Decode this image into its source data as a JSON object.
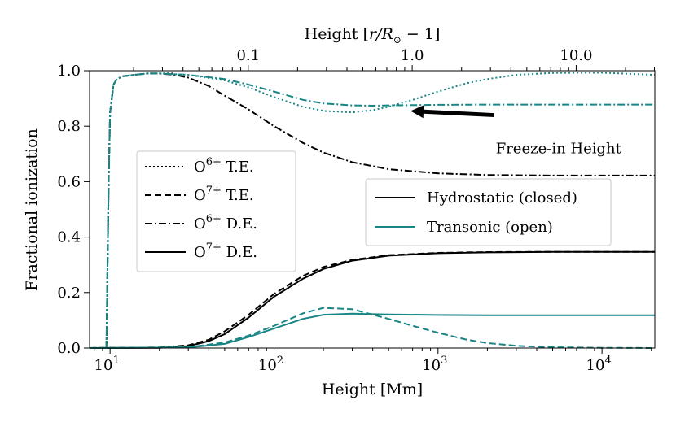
{
  "chart_data": {
    "type": "line",
    "xlabel": "Height [Mm]",
    "ylabel": "Fractional ionization",
    "x2label_prefix": "Height [",
    "x2label_var": "r/R",
    "x2label_sub": "⊙",
    "x2label_suffix": " − 1]",
    "xscale": "log",
    "xlim": [
      7.5,
      21000
    ],
    "ylim": [
      0.0,
      1.0
    ],
    "x_ticks": [
      {
        "value": 10,
        "label": "10",
        "exp": "1"
      },
      {
        "value": 100,
        "label": "10",
        "exp": "2"
      },
      {
        "value": 1000,
        "label": "10",
        "exp": "3"
      },
      {
        "value": 10000,
        "label": "10",
        "exp": "4"
      }
    ],
    "y_ticks": [
      {
        "value": 0.0,
        "label": "0.0"
      },
      {
        "value": 0.2,
        "label": "0.2"
      },
      {
        "value": 0.4,
        "label": "0.4"
      },
      {
        "value": 0.6,
        "label": "0.6"
      },
      {
        "value": 0.8,
        "label": "0.8"
      },
      {
        "value": 1.0,
        "label": "1.0"
      }
    ],
    "x2_ticks": [
      {
        "value": 0.1,
        "label": "0.1"
      },
      {
        "value": 1.0,
        "label": "1.0"
      },
      {
        "value": 10.0,
        "label": "10.0"
      }
    ],
    "x2_scale_Mm_per_unit": 696,
    "annotation": {
      "text": "Freeze-in Height",
      "arrow_from": [
        2200,
        0.84
      ],
      "arrow_to": [
        680,
        0.855
      ],
      "text_at": [
        2250,
        0.72
      ]
    },
    "colors": {
      "hydrostatic": "#000000",
      "transonic": "#1a8585"
    },
    "legend_styles": {
      "title_placement": "center-left",
      "entries": [
        {
          "ion": "O",
          "charge": "6+",
          "label": "T.E.",
          "dash": "dotted"
        },
        {
          "ion": "O",
          "charge": "7+",
          "label": "T.E.",
          "dash": "dashed"
        },
        {
          "ion": "O",
          "charge": "6+",
          "label": "D.E.",
          "dash": "dashdot"
        },
        {
          "ion": "O",
          "charge": "7+",
          "label": "D.E.",
          "dash": "solid"
        }
      ]
    },
    "legend_models": {
      "placement": "center-right",
      "entries": [
        {
          "label": "Hydrostatic (closed)",
          "color": "#000000"
        },
        {
          "label": "Transonic (open)",
          "color": "#1a8585"
        }
      ]
    },
    "series": [
      {
        "model": "hydrostatic",
        "style": "dotted",
        "color": "#000000",
        "x": [
          9.5,
          9.8,
          10,
          10.5,
          11,
          12,
          14,
          17,
          20,
          25
        ],
        "y": [
          0.0,
          0.6,
          0.85,
          0.95,
          0.97,
          0.98,
          0.985,
          0.99,
          0.99,
          0.99
        ]
      },
      {
        "model": "hydrostatic",
        "style": "dashdot",
        "color": "#000000",
        "x": [
          9.5,
          9.8,
          10,
          10.5,
          11,
          12,
          14,
          17,
          20,
          25,
          30,
          40,
          50,
          70,
          100,
          150,
          200,
          300,
          500,
          1000,
          2000,
          5000,
          10000,
          21000
        ],
        "y": [
          0.0,
          0.6,
          0.85,
          0.95,
          0.97,
          0.98,
          0.985,
          0.99,
          0.99,
          0.985,
          0.975,
          0.945,
          0.91,
          0.86,
          0.8,
          0.74,
          0.705,
          0.67,
          0.645,
          0.63,
          0.624,
          0.622,
          0.622,
          0.622
        ]
      },
      {
        "model": "hydrostatic",
        "style": "dashed",
        "color": "#000000",
        "x": [
          7.5,
          20,
          30,
          40,
          50,
          70,
          100,
          150,
          200,
          300,
          500,
          1000,
          2000,
          5000,
          10000,
          21000
        ],
        "y": [
          0.0,
          0.002,
          0.01,
          0.03,
          0.06,
          0.12,
          0.195,
          0.26,
          0.292,
          0.318,
          0.335,
          0.343,
          0.346,
          0.347,
          0.347,
          0.347
        ]
      },
      {
        "model": "hydrostatic",
        "style": "solid",
        "color": "#000000",
        "x": [
          7.5,
          20,
          30,
          40,
          50,
          70,
          100,
          150,
          200,
          300,
          500,
          1000,
          2000,
          5000,
          10000,
          21000
        ],
        "y": [
          0.0,
          0.001,
          0.007,
          0.025,
          0.05,
          0.11,
          0.185,
          0.25,
          0.285,
          0.315,
          0.333,
          0.342,
          0.345,
          0.347,
          0.347,
          0.347
        ]
      },
      {
        "model": "transonic",
        "style": "dotted",
        "color": "#1a8585",
        "x": [
          9.5,
          9.8,
          10,
          10.5,
          11,
          12,
          14,
          17,
          20,
          30,
          50,
          70,
          100,
          150,
          200,
          300,
          400,
          500,
          700,
          1000,
          1500,
          2000,
          3000,
          5000,
          10000,
          21000
        ],
        "y": [
          0.0,
          0.6,
          0.85,
          0.95,
          0.97,
          0.98,
          0.985,
          0.99,
          0.99,
          0.985,
          0.965,
          0.94,
          0.905,
          0.87,
          0.855,
          0.85,
          0.858,
          0.87,
          0.895,
          0.925,
          0.955,
          0.97,
          0.985,
          0.992,
          0.993,
          0.985
        ]
      },
      {
        "model": "transonic",
        "style": "dashdot",
        "color": "#1a8585",
        "x": [
          9.5,
          9.8,
          10,
          10.5,
          11,
          12,
          14,
          17,
          20,
          30,
          50,
          70,
          100,
          150,
          200,
          300,
          400,
          500,
          1000,
          2000,
          5000,
          10000,
          21000
        ],
        "y": [
          0.0,
          0.6,
          0.85,
          0.95,
          0.97,
          0.98,
          0.985,
          0.99,
          0.99,
          0.985,
          0.97,
          0.95,
          0.925,
          0.895,
          0.882,
          0.875,
          0.874,
          0.875,
          0.877,
          0.878,
          0.878,
          0.878,
          0.878
        ]
      },
      {
        "model": "transonic",
        "style": "dashed",
        "color": "#1a8585",
        "x": [
          7.5,
          30,
          50,
          70,
          100,
          150,
          200,
          300,
          500,
          700,
          1000,
          1500,
          2000,
          3000,
          5000,
          10000,
          21000
        ],
        "y": [
          0.0,
          0.003,
          0.02,
          0.045,
          0.08,
          0.125,
          0.145,
          0.14,
          0.105,
          0.08,
          0.055,
          0.03,
          0.018,
          0.008,
          0.003,
          0.001,
          0.0
        ]
      },
      {
        "model": "transonic",
        "style": "solid",
        "color": "#1a8585",
        "x": [
          7.5,
          30,
          50,
          70,
          100,
          150,
          200,
          300,
          500,
          1000,
          2000,
          5000,
          10000,
          21000
        ],
        "y": [
          0.0,
          0.002,
          0.015,
          0.04,
          0.07,
          0.105,
          0.12,
          0.124,
          0.121,
          0.119,
          0.118,
          0.118,
          0.118,
          0.118
        ]
      }
    ]
  }
}
